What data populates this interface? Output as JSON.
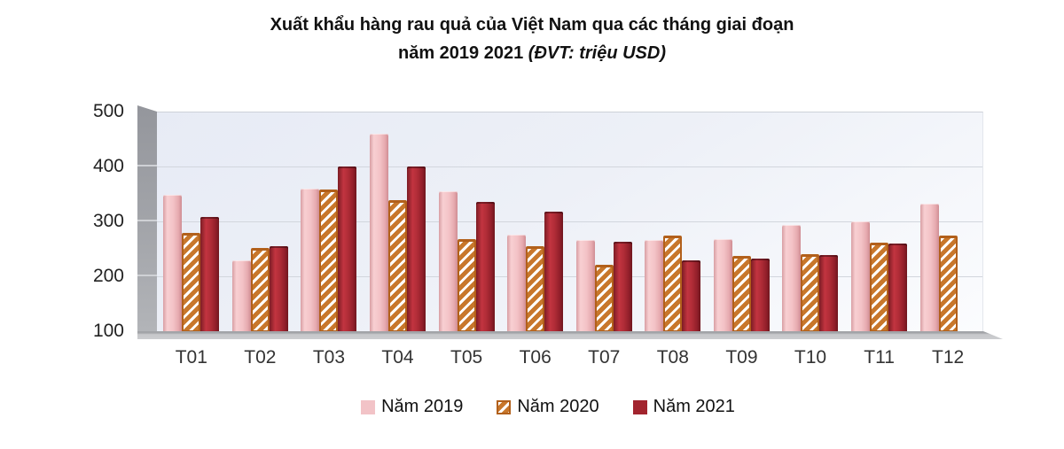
{
  "title": {
    "line1": "Xuất khẩu hàng rau quả của Việt Nam qua các tháng giai đoạn",
    "line2_bold": "năm 2019 2021",
    "line2_unit": "(ĐVT: triệu USD)"
  },
  "chart_data": {
    "type": "bar",
    "title": "Xuất khẩu hàng rau quả của Việt Nam qua các tháng giai đoạn năm 2019 2021",
    "unit_label": "ĐVT: triệu USD",
    "categories": [
      "T01",
      "T02",
      "T03",
      "T04",
      "T05",
      "T06",
      "T07",
      "T08",
      "T09",
      "T10",
      "T11",
      "T12"
    ],
    "series": [
      {
        "key": "y2019",
        "name": "Năm 2019",
        "color": "#f2c3c7",
        "pattern": "solid",
        "values": [
          350,
          231,
          362,
          461,
          356,
          278,
          267,
          267,
          269,
          295,
          301,
          334
        ]
      },
      {
        "key": "y2020",
        "name": "Năm 2020",
        "color": "#c8772b",
        "pattern": "diagonal-hatch",
        "values": [
          281,
          254,
          359,
          340,
          270,
          257,
          222,
          276,
          238,
          242,
          263,
          276
        ]
      },
      {
        "key": "y2021",
        "name": "Năm 2021",
        "color": "#a2242e",
        "pattern": "solid",
        "values": [
          309,
          256,
          401,
          402,
          337,
          320,
          265,
          231,
          234,
          240,
          262,
          null
        ]
      }
    ],
    "ylim": [
      100,
      500
    ],
    "yticks": [
      100,
      200,
      300,
      400,
      500
    ],
    "grid": true,
    "style": "3d-wall",
    "legend_position": "bottom",
    "wall_color": "#a3a5aa",
    "floor_color": "#c6c7ca",
    "plot_bg_color": "#edf0f7",
    "gridline_color": "#d2d6dd"
  }
}
